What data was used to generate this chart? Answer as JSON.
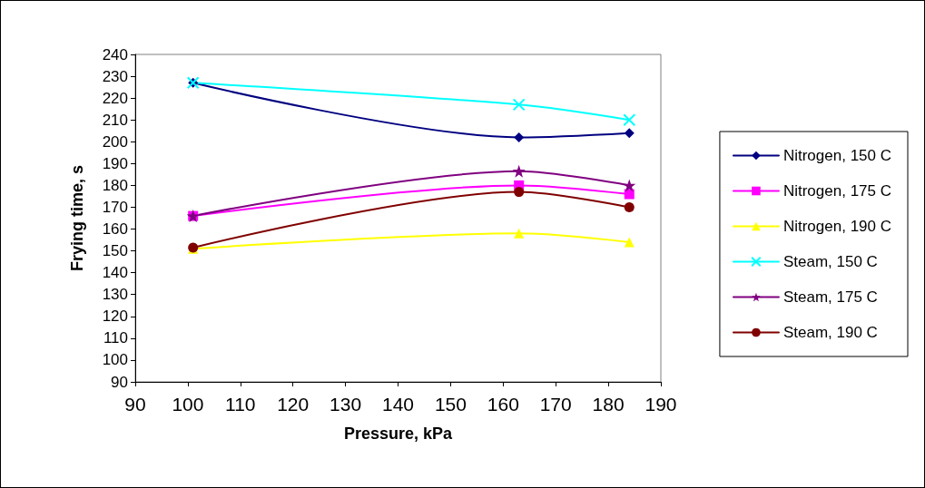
{
  "chart_data": {
    "type": "line",
    "xlabel": "Pressure, kPa",
    "ylabel": "Frying time, s",
    "x": [
      101,
      163,
      184
    ],
    "series": [
      {
        "name": "Nitrogen, 150 C",
        "color": "#000080",
        "marker": "diamond",
        "values": [
          227,
          202,
          204
        ]
      },
      {
        "name": "Nitrogen, 175 C",
        "color": "#ff00ff",
        "marker": "square",
        "values": [
          166,
          180,
          176
        ]
      },
      {
        "name": "Nitrogen, 190 C",
        "color": "#ffff00",
        "marker": "triangle",
        "values": [
          151,
          158,
          154
        ]
      },
      {
        "name": "Steam, 150 C",
        "color": "#00ffff",
        "marker": "cross",
        "values": [
          227,
          217,
          210
        ]
      },
      {
        "name": "Steam, 175 C",
        "color": "#800080",
        "marker": "star",
        "values": [
          166,
          186.5,
          180
        ]
      },
      {
        "name": "Steam, 190 C",
        "color": "#800000",
        "marker": "circle",
        "values": [
          151.5,
          177,
          170
        ]
      }
    ],
    "xlim": [
      90,
      190
    ],
    "xticks": [
      90,
      100,
      110,
      120,
      130,
      140,
      150,
      160,
      170,
      180,
      190
    ],
    "ylim": [
      90,
      240
    ],
    "yticks": [
      90,
      100,
      110,
      120,
      130,
      140,
      150,
      160,
      170,
      180,
      190,
      200,
      210,
      220,
      230,
      240
    ],
    "grid": false,
    "legend": "right",
    "line_style": "solid"
  }
}
